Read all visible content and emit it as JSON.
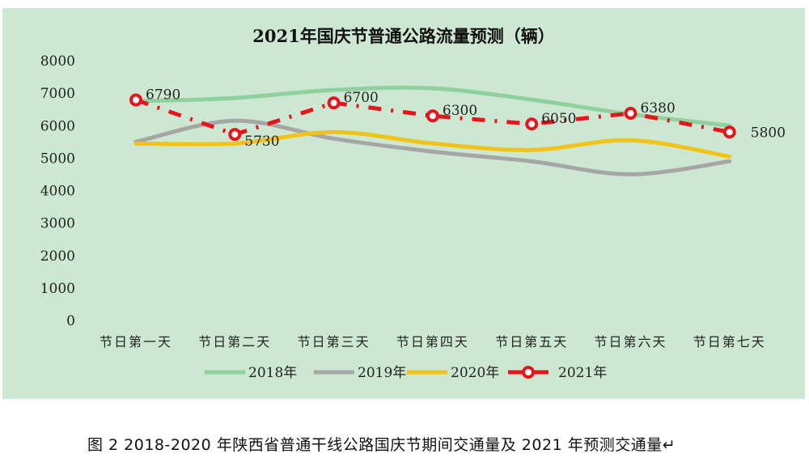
{
  "chart_data": {
    "type": "line",
    "title": "2021年国庆节普通公路流量预测（辆）",
    "categories": [
      "节日第一天",
      "节日第二天",
      "节日第三天",
      "节日第四天",
      "节日第五天",
      "节日第六天",
      "节日第七天"
    ],
    "ylim": [
      0,
      8000
    ],
    "yticks": [
      0,
      1000,
      2000,
      3000,
      4000,
      5000,
      6000,
      7000,
      8000
    ],
    "grid": false,
    "legend": "bottom",
    "series": [
      {
        "name": "2018年",
        "color": "#8fd19e",
        "smooth": true,
        "values": [
          6750,
          6850,
          7100,
          7150,
          6800,
          6350,
          6000
        ]
      },
      {
        "name": "2019年",
        "color": "#a6a6a6",
        "smooth": true,
        "values": [
          5500,
          6150,
          5600,
          5200,
          4900,
          4500,
          4900
        ]
      },
      {
        "name": "2020年",
        "color": "#f2c314",
        "smooth": true,
        "values": [
          5450,
          5450,
          5800,
          5450,
          5250,
          5550,
          5050
        ]
      },
      {
        "name": "2021年",
        "color": "#e8131b",
        "dashed": true,
        "markers": "circle",
        "values": [
          6790,
          5730,
          6700,
          6300,
          6050,
          6380,
          5800
        ],
        "data_labels": [
          "6790",
          "5730",
          "6700",
          "6300",
          "6050",
          "6380",
          "5800"
        ]
      }
    ]
  },
  "caption": "图 2   2018-2020 年陕西省普通干线公路国庆节期间交通量及 2021 年预测交通量↵"
}
